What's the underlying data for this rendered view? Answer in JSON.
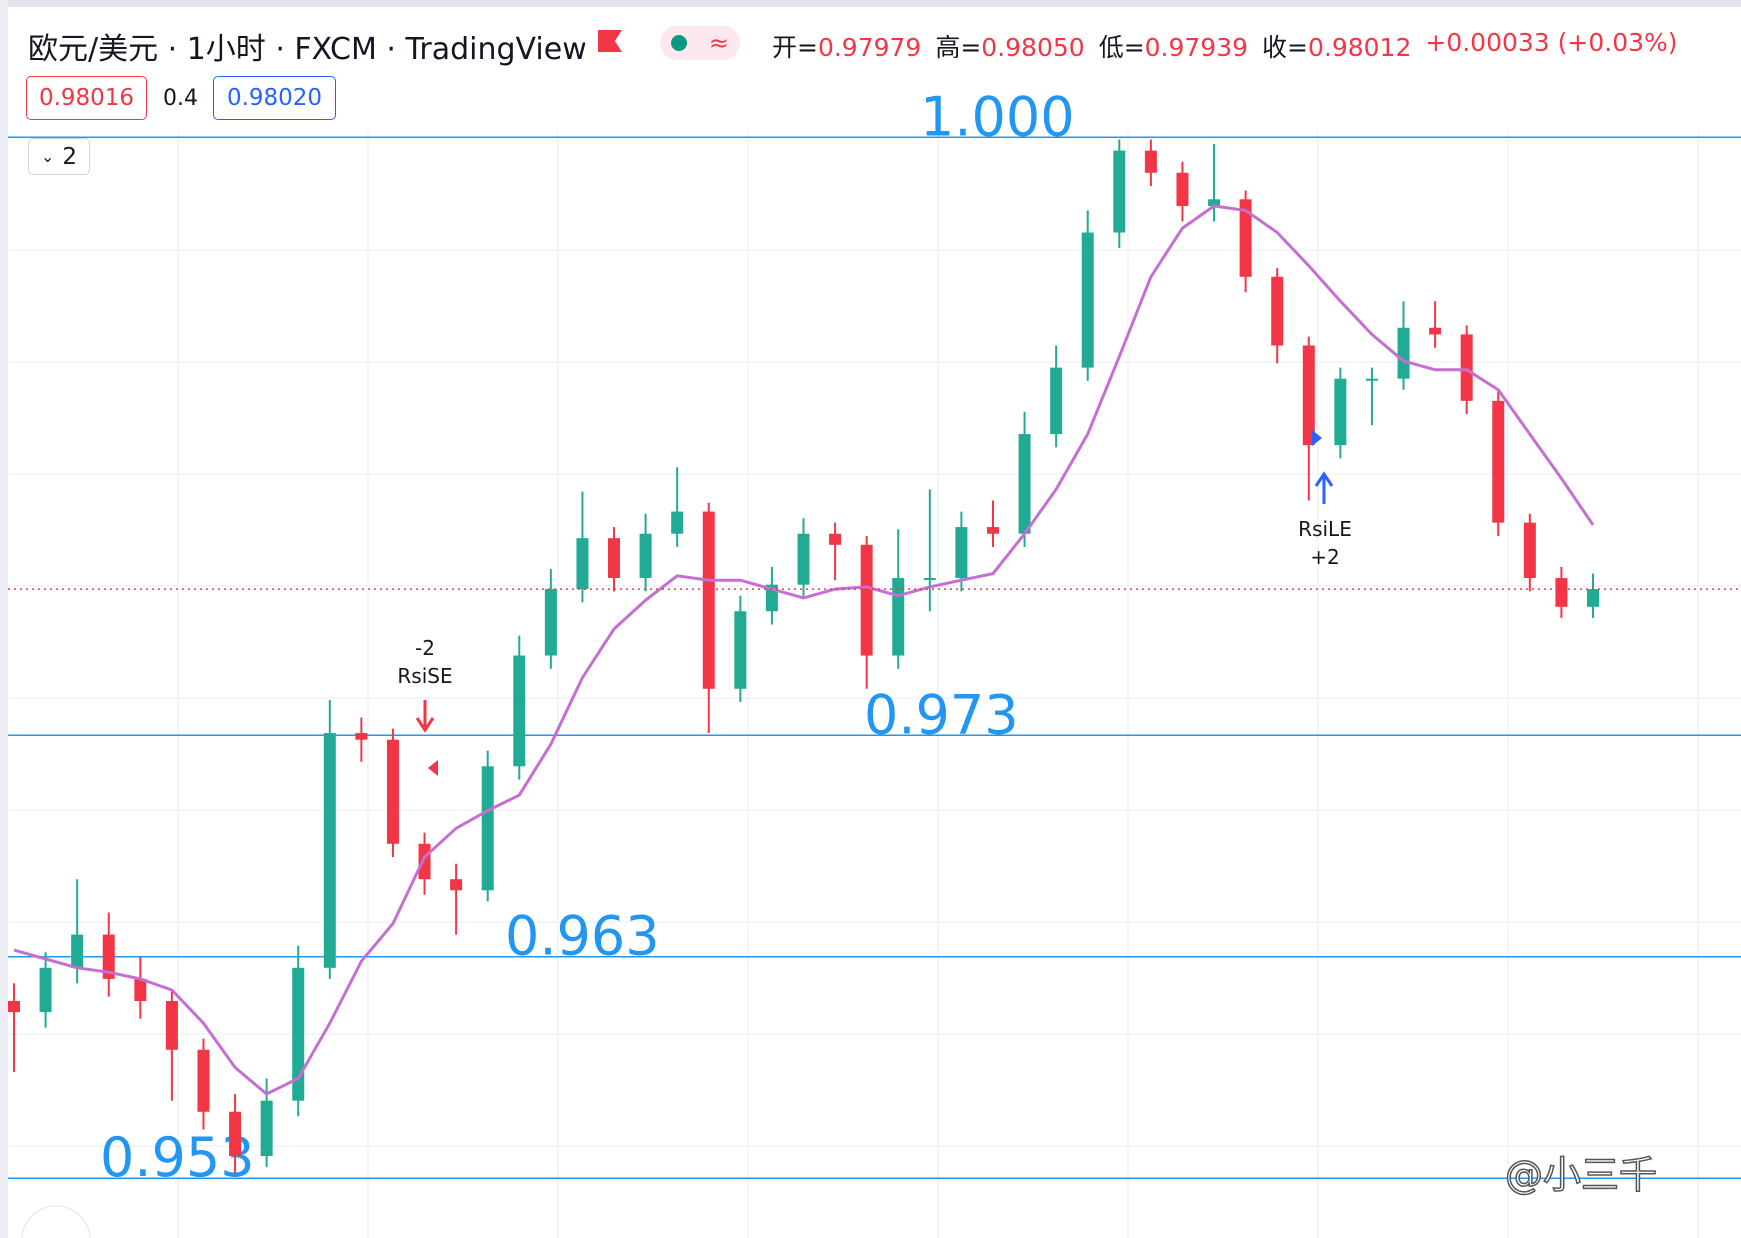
{
  "header": {
    "symbol": "欧元/美元 · 1小时 · FXCM · TradingView",
    "ohlc": [
      {
        "label": "开=",
        "value": "0.97979"
      },
      {
        "label": "高=",
        "value": "0.98050"
      },
      {
        "label": "低=",
        "value": "0.97939"
      },
      {
        "label": "收=",
        "value": "0.98012"
      }
    ],
    "change": "+0.00033 (+0.03%)",
    "bid": "0.98016",
    "spread": "0.4",
    "ask": "0.98020",
    "collapse": "2"
  },
  "chart_data": {
    "type": "candlestick",
    "open": [
      0.961,
      0.9605,
      0.9625,
      0.964,
      0.962,
      0.961,
      0.9588,
      0.956,
      0.954,
      0.9565,
      0.9625,
      0.9731,
      0.9728,
      0.9681,
      0.9665,
      0.966,
      0.9716,
      0.9766,
      0.9796,
      0.9819,
      0.9801,
      0.9821,
      0.9831,
      0.9751,
      0.9786,
      0.9798,
      0.9821,
      0.9816,
      0.9766,
      0.9801,
      0.9801,
      0.9824,
      0.9821,
      0.9866,
      0.9896,
      0.9957,
      0.9994,
      0.9984,
      0.9969,
      0.9972,
      0.9937,
      0.9906,
      0.9861,
      0.9891,
      0.9891,
      0.9914,
      0.9911,
      0.9881,
      0.9826,
      0.9801,
      0.9788
    ],
    "high": [
      0.9618,
      0.9632,
      0.9665,
      0.965,
      0.963,
      0.9615,
      0.9593,
      0.9568,
      0.9575,
      0.9635,
      0.9746,
      0.9738,
      0.9733,
      0.9686,
      0.9672,
      0.9723,
      0.9775,
      0.9805,
      0.984,
      0.9824,
      0.983,
      0.9851,
      0.9835,
      0.9793,
      0.9806,
      0.9828,
      0.9826,
      0.982,
      0.9823,
      0.9841,
      0.9831,
      0.9836,
      0.9876,
      0.9906,
      0.9967,
      0.9999,
      0.9999,
      0.9989,
      0.9997,
      0.9976,
      0.9941,
      0.991,
      0.9896,
      0.9896,
      0.9926,
      0.9926,
      0.9915,
      0.9886,
      0.983,
      0.9806,
      0.9803
    ],
    "low": [
      0.9578,
      0.9598,
      0.9618,
      0.9612,
      0.9602,
      0.9565,
      0.9552,
      0.9532,
      0.9535,
      0.9558,
      0.962,
      0.9718,
      0.9675,
      0.9658,
      0.964,
      0.9655,
      0.971,
      0.976,
      0.979,
      0.9795,
      0.9795,
      0.9815,
      0.9731,
      0.9745,
      0.978,
      0.9792,
      0.98,
      0.9751,
      0.976,
      0.9786,
      0.9795,
      0.9815,
      0.9815,
      0.986,
      0.989,
      0.995,
      0.9978,
      0.9962,
      0.9962,
      0.993,
      0.9898,
      0.9836,
      0.9855,
      0.987,
      0.9886,
      0.9905,
      0.9875,
      0.982,
      0.9795,
      0.9783,
      0.9783
    ],
    "close": [
      0.9605,
      0.9625,
      0.964,
      0.962,
      0.961,
      0.9588,
      0.956,
      0.954,
      0.9565,
      0.9625,
      0.9731,
      0.9728,
      0.9681,
      0.9665,
      0.966,
      0.9716,
      0.9766,
      0.9796,
      0.9819,
      0.9801,
      0.9821,
      0.9831,
      0.9751,
      0.9786,
      0.9798,
      0.9821,
      0.9816,
      0.9766,
      0.9801,
      0.9801,
      0.9824,
      0.9821,
      0.9866,
      0.9896,
      0.9957,
      0.9994,
      0.9984,
      0.9969,
      0.9972,
      0.9937,
      0.9906,
      0.9861,
      0.9891,
      0.9891,
      0.9914,
      0.9911,
      0.9881,
      0.9826,
      0.9801,
      0.9788,
      0.9796
    ],
    "up_color": "#22ab94",
    "down_color": "#f23645",
    "ma": {
      "color": "#c56fd2",
      "values": [
        0.9633,
        0.9629,
        0.9625,
        0.9623,
        0.962,
        0.9615,
        0.96,
        0.958,
        0.9568,
        0.9575,
        0.96,
        0.9628,
        0.9645,
        0.9675,
        0.9688,
        0.9696,
        0.9703,
        0.9726,
        0.9756,
        0.9778,
        0.9791,
        0.9802,
        0.98,
        0.98,
        0.9796,
        0.9792,
        0.9796,
        0.9797,
        0.9793,
        0.9797,
        0.98,
        0.9803,
        0.9821,
        0.9841,
        0.9866,
        0.9901,
        0.9937,
        0.9959,
        0.9969,
        0.9967,
        0.9957,
        0.9942,
        0.9926,
        0.9911,
        0.9899,
        0.9895,
        0.9895,
        0.9886,
        0.9866,
        0.9846,
        0.9825
      ]
    },
    "ylim": [
      0.9503,
      1.0062
    ],
    "levels": [
      {
        "value": 1,
        "label": "1.000"
      },
      0.973,
      0.963,
      0.953
    ],
    "level_color": "#2196f3",
    "annotations": [
      [
        "-2",
        "RsiSE"
      ],
      [
        "RsiLE",
        "+2"
      ]
    ]
  },
  "watermark": "@小三千"
}
